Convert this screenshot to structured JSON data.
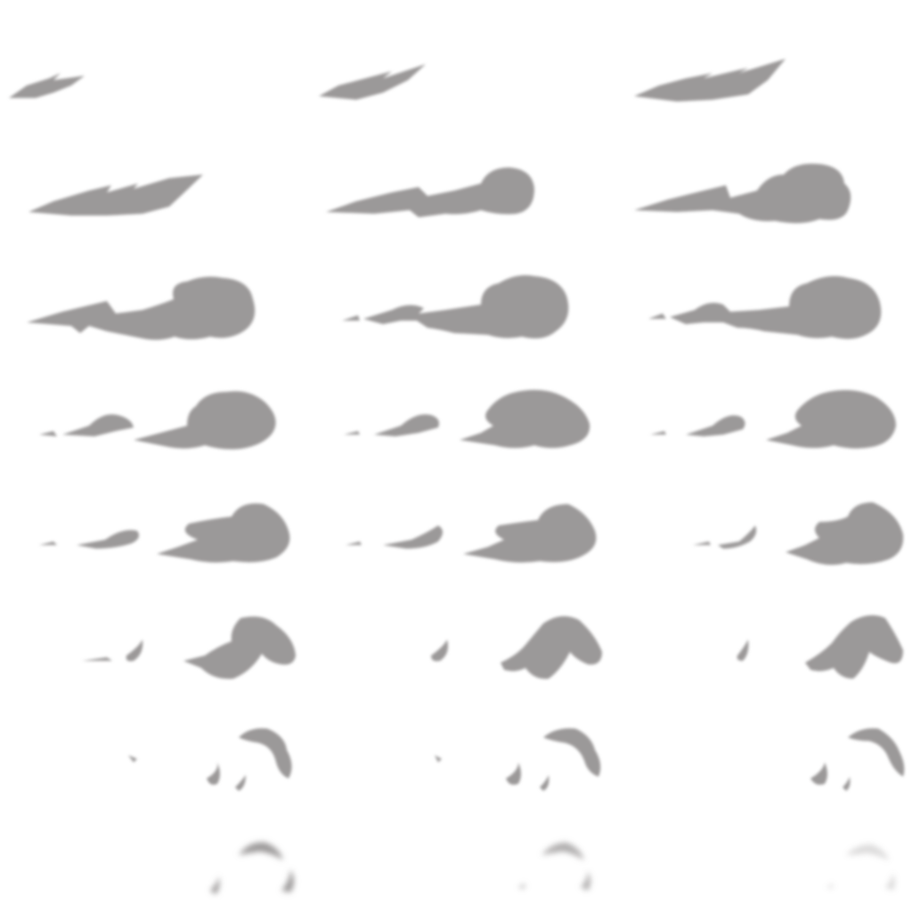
{
  "sprite_sheet": {
    "rows": 8,
    "columns": 3,
    "frame_count": 24,
    "background_color": "#ffffff",
    "smoke_color": "#9b9999",
    "frames": [
      {
        "index": 1,
        "phase": "streak"
      },
      {
        "index": 2,
        "phase": "streak"
      },
      {
        "index": 3,
        "phase": "streak"
      },
      {
        "index": 4,
        "phase": "streak"
      },
      {
        "index": 5,
        "phase": "puff-forming"
      },
      {
        "index": 6,
        "phase": "puff-forming"
      },
      {
        "index": 7,
        "phase": "full-cloud"
      },
      {
        "index": 8,
        "phase": "full-cloud"
      },
      {
        "index": 9,
        "phase": "full-cloud"
      },
      {
        "index": 10,
        "phase": "breaking"
      },
      {
        "index": 11,
        "phase": "breaking"
      },
      {
        "index": 12,
        "phase": "breaking"
      },
      {
        "index": 13,
        "phase": "dispersing"
      },
      {
        "index": 14,
        "phase": "dispersing"
      },
      {
        "index": 15,
        "phase": "dispersing"
      },
      {
        "index": 16,
        "phase": "dispersing"
      },
      {
        "index": 17,
        "phase": "dispersing"
      },
      {
        "index": 18,
        "phase": "dispersing"
      },
      {
        "index": 19,
        "phase": "fading"
      },
      {
        "index": 20,
        "phase": "fading"
      },
      {
        "index": 21,
        "phase": "fading"
      },
      {
        "index": 22,
        "phase": "vanishing"
      },
      {
        "index": 23,
        "phase": "vanishing"
      },
      {
        "index": 24,
        "phase": "vanishing"
      }
    ]
  }
}
